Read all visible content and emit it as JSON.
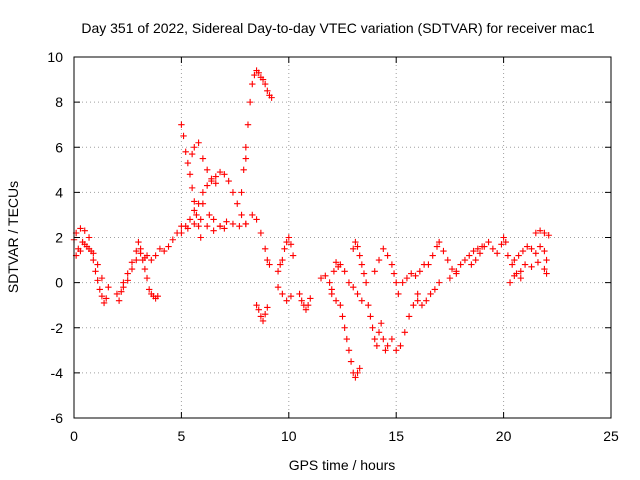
{
  "chart_data": {
    "type": "scatter",
    "title": "Day 351 of 2022, Sidereal Day-to-day VTEC variation (SDTVAR) for receiver mac1",
    "xlabel": "GPS time / hours",
    "ylabel": "SDTVAR / TECUs",
    "xlim": [
      0,
      25
    ],
    "ylim": [
      -6,
      10
    ],
    "xticks": [
      0,
      5,
      10,
      15,
      20,
      25
    ],
    "yticks": [
      -6,
      -4,
      -2,
      0,
      2,
      4,
      6,
      8,
      10
    ],
    "grid": true,
    "marker": "+",
    "color": "#ff0000",
    "series": [
      {
        "name": "SDTVAR",
        "points": [
          [
            0.0,
            1.9
          ],
          [
            0.1,
            2.2
          ],
          [
            0.2,
            1.5
          ],
          [
            0.3,
            2.4
          ],
          [
            0.4,
            1.8
          ],
          [
            0.5,
            2.3
          ],
          [
            0.6,
            1.6
          ],
          [
            0.7,
            2.0
          ],
          [
            0.8,
            1.4
          ],
          [
            0.9,
            1.0
          ],
          [
            1.0,
            0.5
          ],
          [
            1.1,
            0.1
          ],
          [
            1.2,
            -0.3
          ],
          [
            1.3,
            -0.6
          ],
          [
            1.4,
            -0.9
          ],
          [
            1.5,
            -0.7
          ],
          [
            1.6,
            -0.2
          ],
          [
            0.1,
            1.2
          ],
          [
            0.3,
            1.4
          ],
          [
            0.5,
            1.7
          ],
          [
            0.7,
            1.5
          ],
          [
            0.9,
            1.3
          ],
          [
            1.1,
            0.8
          ],
          [
            1.3,
            0.2
          ],
          [
            2.0,
            -0.5
          ],
          [
            2.1,
            -0.8
          ],
          [
            2.2,
            -0.4
          ],
          [
            2.3,
            0.0
          ],
          [
            2.5,
            0.4
          ],
          [
            2.7,
            0.9
          ],
          [
            2.9,
            1.4
          ],
          [
            3.0,
            1.8
          ],
          [
            3.1,
            1.5
          ],
          [
            3.2,
            1.0
          ],
          [
            3.3,
            0.6
          ],
          [
            3.4,
            0.2
          ],
          [
            3.5,
            -0.3
          ],
          [
            3.6,
            -0.5
          ],
          [
            3.7,
            -0.6
          ],
          [
            3.8,
            -0.7
          ],
          [
            3.9,
            -0.6
          ],
          [
            3.4,
            1.2
          ],
          [
            3.6,
            1.0
          ],
          [
            3.8,
            1.2
          ],
          [
            4.0,
            1.5
          ],
          [
            4.2,
            1.4
          ],
          [
            4.4,
            1.6
          ],
          [
            4.6,
            1.9
          ],
          [
            4.8,
            2.2
          ],
          [
            5.0,
            2.5
          ],
          [
            2.3,
            -0.2
          ],
          [
            2.5,
            0.1
          ],
          [
            2.7,
            0.6
          ],
          [
            2.9,
            1.0
          ],
          [
            3.1,
            1.3
          ],
          [
            3.3,
            1.1
          ],
          [
            5.0,
            7.0
          ],
          [
            5.1,
            6.5
          ],
          [
            5.2,
            5.8
          ],
          [
            5.3,
            5.3
          ],
          [
            5.4,
            4.8
          ],
          [
            5.5,
            4.2
          ],
          [
            5.6,
            3.6
          ],
          [
            5.7,
            3.0
          ],
          [
            5.8,
            2.5
          ],
          [
            5.9,
            2.0
          ],
          [
            5.5,
            5.7
          ],
          [
            5.6,
            6.0
          ],
          [
            5.8,
            6.2
          ],
          [
            6.0,
            5.5
          ],
          [
            6.2,
            5.0
          ],
          [
            6.4,
            4.6
          ],
          [
            6.6,
            4.4
          ],
          [
            5.2,
            2.5
          ],
          [
            5.4,
            2.8
          ],
          [
            5.6,
            3.2
          ],
          [
            5.8,
            3.5
          ],
          [
            6.0,
            4.0
          ],
          [
            6.2,
            4.3
          ],
          [
            6.4,
            4.5
          ],
          [
            6.6,
            4.7
          ],
          [
            6.8,
            4.9
          ],
          [
            7.0,
            4.8
          ],
          [
            7.2,
            4.5
          ],
          [
            7.4,
            4.0
          ],
          [
            7.6,
            3.5
          ],
          [
            7.8,
            3.0
          ],
          [
            8.0,
            2.6
          ],
          [
            5.0,
            2.2
          ],
          [
            5.3,
            2.4
          ],
          [
            5.6,
            2.6
          ],
          [
            5.9,
            2.8
          ],
          [
            6.2,
            2.5
          ],
          [
            6.5,
            2.3
          ],
          [
            6.8,
            2.5
          ],
          [
            7.1,
            2.7
          ],
          [
            7.4,
            2.6
          ],
          [
            7.7,
            2.5
          ],
          [
            8.0,
            2.6
          ],
          [
            8.3,
            3.0
          ],
          [
            8.5,
            2.8
          ],
          [
            8.7,
            2.2
          ],
          [
            8.9,
            1.5
          ],
          [
            9.0,
            1.0
          ],
          [
            9.1,
            0.8
          ],
          [
            6.0,
            3.5
          ],
          [
            6.3,
            3.0
          ],
          [
            6.5,
            2.8
          ],
          [
            6.8,
            2.5
          ],
          [
            7.0,
            2.4
          ],
          [
            8.0,
            6.0
          ],
          [
            8.1,
            7.0
          ],
          [
            8.2,
            8.0
          ],
          [
            8.3,
            8.8
          ],
          [
            8.4,
            9.2
          ],
          [
            8.5,
            9.4
          ],
          [
            8.6,
            9.3
          ],
          [
            8.7,
            9.1
          ],
          [
            8.8,
            9.0
          ],
          [
            8.9,
            8.8
          ],
          [
            9.0,
            8.5
          ],
          [
            9.1,
            8.3
          ],
          [
            9.2,
            8.2
          ],
          [
            7.8,
            4.0
          ],
          [
            7.9,
            5.0
          ],
          [
            8.0,
            5.5
          ],
          [
            8.5,
            -1.0
          ],
          [
            8.6,
            -1.2
          ],
          [
            8.7,
            -1.5
          ],
          [
            8.8,
            -1.7
          ],
          [
            8.9,
            -1.4
          ],
          [
            9.0,
            -1.1
          ],
          [
            9.5,
            0.5
          ],
          [
            9.6,
            0.8
          ],
          [
            9.7,
            1.0
          ],
          [
            9.8,
            1.5
          ],
          [
            9.9,
            1.8
          ],
          [
            10.0,
            2.0
          ],
          [
            10.1,
            1.7
          ],
          [
            10.2,
            1.2
          ],
          [
            9.5,
            -0.2
          ],
          [
            9.7,
            -0.5
          ],
          [
            9.9,
            -0.8
          ],
          [
            10.1,
            -0.6
          ],
          [
            10.5,
            -0.5
          ],
          [
            10.6,
            -0.8
          ],
          [
            10.7,
            -1.0
          ],
          [
            10.8,
            -1.2
          ],
          [
            10.9,
            -1.0
          ],
          [
            11.0,
            -0.7
          ],
          [
            11.5,
            0.2
          ],
          [
            11.7,
            0.3
          ],
          [
            11.9,
            0.0
          ],
          [
            12.0,
            -0.3
          ],
          [
            12.1,
            0.5
          ],
          [
            12.2,
            0.9
          ],
          [
            12.3,
            0.7
          ],
          [
            12.4,
            0.8
          ],
          [
            12.6,
            0.5
          ],
          [
            12.8,
            0.0
          ],
          [
            13.0,
            -0.2
          ],
          [
            13.2,
            -0.5
          ],
          [
            13.4,
            -0.8
          ],
          [
            12.0,
            -0.5
          ],
          [
            12.2,
            -0.8
          ],
          [
            12.4,
            -1.0
          ],
          [
            12.5,
            -1.5
          ],
          [
            12.6,
            -2.0
          ],
          [
            12.7,
            -2.5
          ],
          [
            12.8,
            -3.0
          ],
          [
            12.9,
            -3.5
          ],
          [
            13.0,
            -4.0
          ],
          [
            13.1,
            -4.2
          ],
          [
            13.2,
            -4.0
          ],
          [
            13.3,
            -3.8
          ],
          [
            13.0,
            1.5
          ],
          [
            13.1,
            1.8
          ],
          [
            13.2,
            1.6
          ],
          [
            13.3,
            1.2
          ],
          [
            13.4,
            0.8
          ],
          [
            13.5,
            0.4
          ],
          [
            13.6,
            0.0
          ],
          [
            13.7,
            -1.0
          ],
          [
            13.8,
            -1.5
          ],
          [
            13.9,
            -2.0
          ],
          [
            14.0,
            -2.5
          ],
          [
            14.1,
            -2.8
          ],
          [
            14.2,
            -2.2
          ],
          [
            14.3,
            -1.8
          ],
          [
            14.4,
            -2.5
          ],
          [
            14.5,
            -3.0
          ],
          [
            14.6,
            -2.8
          ],
          [
            14.0,
            0.5
          ],
          [
            14.2,
            1.0
          ],
          [
            14.4,
            1.5
          ],
          [
            14.6,
            1.2
          ],
          [
            14.8,
            0.8
          ],
          [
            14.9,
            0.4
          ],
          [
            15.0,
            0.0
          ],
          [
            15.1,
            -0.5
          ],
          [
            14.8,
            -2.5
          ],
          [
            15.0,
            -3.0
          ],
          [
            15.2,
            -2.8
          ],
          [
            15.4,
            -2.2
          ],
          [
            15.6,
            -1.5
          ],
          [
            15.8,
            -1.0
          ],
          [
            16.0,
            -0.5
          ],
          [
            15.3,
            0.0
          ],
          [
            15.5,
            0.2
          ],
          [
            15.7,
            0.4
          ],
          [
            15.9,
            0.3
          ],
          [
            16.1,
            0.5
          ],
          [
            16.3,
            0.8
          ],
          [
            16.0,
            -0.8
          ],
          [
            16.2,
            -1.0
          ],
          [
            16.4,
            -0.8
          ],
          [
            16.6,
            -0.5
          ],
          [
            16.8,
            -0.3
          ],
          [
            17.0,
            0.0
          ],
          [
            16.5,
            0.8
          ],
          [
            16.7,
            1.2
          ],
          [
            16.9,
            1.6
          ],
          [
            17.0,
            1.8
          ],
          [
            17.2,
            1.4
          ],
          [
            17.4,
            1.0
          ],
          [
            17.6,
            0.6
          ],
          [
            17.8,
            0.4
          ],
          [
            17.5,
            0.2
          ],
          [
            17.8,
            0.5
          ],
          [
            18.0,
            0.8
          ],
          [
            18.2,
            1.0
          ],
          [
            18.4,
            1.2
          ],
          [
            18.6,
            1.4
          ],
          [
            18.8,
            1.5
          ],
          [
            19.0,
            1.6
          ],
          [
            18.5,
            0.8
          ],
          [
            18.7,
            1.0
          ],
          [
            18.9,
            1.3
          ],
          [
            19.1,
            1.6
          ],
          [
            19.3,
            1.8
          ],
          [
            19.5,
            1.5
          ],
          [
            19.7,
            1.3
          ],
          [
            19.9,
            1.7
          ],
          [
            20.0,
            2.0
          ],
          [
            20.1,
            1.8
          ],
          [
            20.2,
            1.2
          ],
          [
            20.4,
            0.8
          ],
          [
            20.6,
            0.4
          ],
          [
            20.8,
            0.2
          ],
          [
            20.5,
            1.0
          ],
          [
            20.7,
            1.2
          ],
          [
            20.9,
            1.4
          ],
          [
            21.1,
            1.6
          ],
          [
            21.3,
            1.5
          ],
          [
            21.5,
            1.3
          ],
          [
            21.7,
            1.6
          ],
          [
            21.9,
            1.4
          ],
          [
            22.0,
            1.0
          ],
          [
            21.5,
            2.2
          ],
          [
            21.7,
            2.3
          ],
          [
            21.9,
            2.2
          ],
          [
            22.1,
            2.1
          ],
          [
            20.3,
            0.0
          ],
          [
            20.5,
            0.3
          ],
          [
            20.8,
            0.5
          ],
          [
            21.0,
            0.8
          ],
          [
            21.3,
            0.7
          ],
          [
            21.6,
            0.9
          ],
          [
            21.9,
            0.6
          ],
          [
            22.0,
            0.4
          ]
        ]
      }
    ]
  }
}
